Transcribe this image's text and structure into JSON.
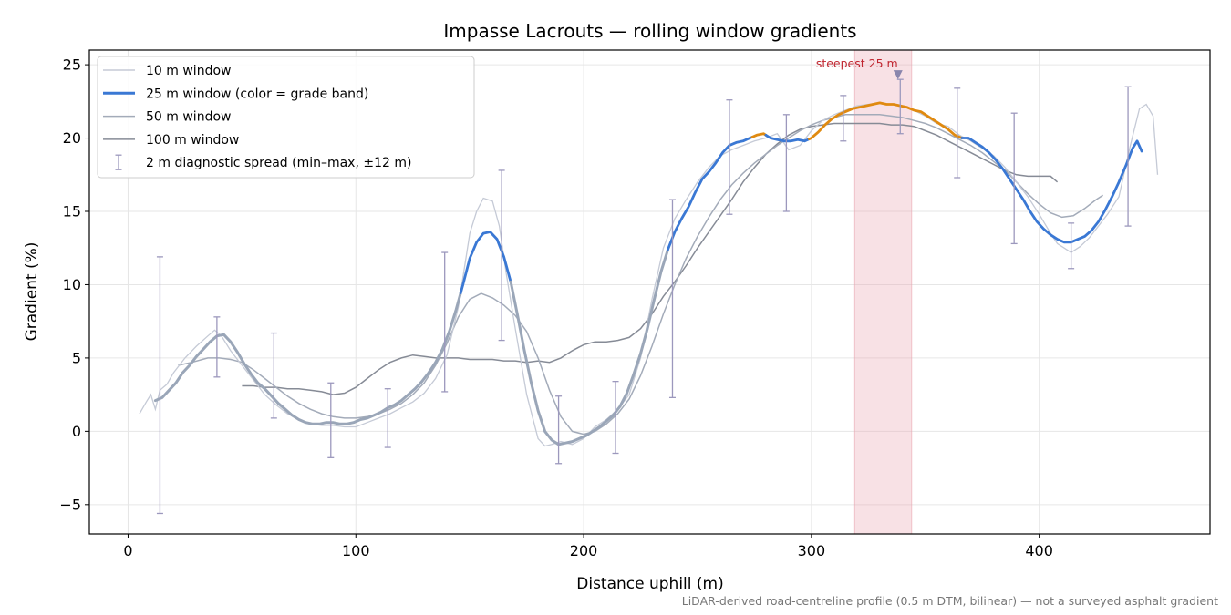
{
  "chart_data": {
    "type": "line",
    "title": "Impasse Lacrouts — rolling window gradients",
    "xlabel": "Distance uphill (m)",
    "ylabel": "Gradient (%)",
    "xlim": [
      -17,
      475
    ],
    "ylim": [
      -7,
      26
    ],
    "xticks": [
      0,
      100,
      200,
      300,
      400
    ],
    "yticks": [
      -5,
      0,
      5,
      10,
      15,
      20,
      25
    ],
    "grid": true,
    "legend_position": "upper-left",
    "footnote": "LiDAR-derived road-centreline profile (0.5 m DTM, bilinear) — not a surveyed asphalt gradient",
    "colors": {
      "w10": "#c5cad6",
      "w25_base": "#9aa6b8",
      "w25_blue": "#3a78d4",
      "w25_orange": "#e08a10",
      "w50": "#a3abb9",
      "w100": "#868b96",
      "errorbar": "#9c98bd",
      "highlight_fill": "#e8a3ad",
      "annotation": "#c0252f"
    },
    "highlight_band": {
      "x0": 319,
      "x1": 344
    },
    "annotation": {
      "label": "steepest 25 m",
      "x": 338,
      "y": 24.5
    },
    "legend": [
      {
        "key": "w10",
        "label": "10 m window"
      },
      {
        "key": "w25",
        "label": "25 m window (color = grade band)"
      },
      {
        "key": "w50",
        "label": "50 m window"
      },
      {
        "key": "w100",
        "label": "100 m window"
      },
      {
        "key": "err",
        "label": "2 m diagnostic spread (min–max, ±12 m)"
      }
    ],
    "series": [
      {
        "key": "w10",
        "name": "10 m window",
        "x": [
          5,
          8,
          10,
          12,
          14,
          17,
          20,
          25,
          30,
          35,
          38,
          41,
          45,
          50,
          55,
          60,
          65,
          70,
          75,
          80,
          85,
          90,
          95,
          100,
          105,
          110,
          115,
          120,
          125,
          130,
          135,
          140,
          145,
          150,
          153,
          156,
          160,
          163,
          166,
          170,
          175,
          180,
          183,
          186,
          190,
          195,
          200,
          205,
          210,
          215,
          220,
          225,
          230,
          235,
          240,
          245,
          250,
          255,
          260,
          265,
          270,
          275,
          280,
          285,
          290,
          295,
          300,
          305,
          310,
          315,
          320,
          325,
          330,
          335,
          340,
          345,
          350,
          355,
          360,
          365,
          370,
          375,
          380,
          385,
          390,
          395,
          400,
          405,
          408,
          411,
          414,
          418,
          422,
          426,
          430,
          435,
          440,
          444,
          447,
          450,
          452
        ],
        "y": [
          1.2,
          2.0,
          2.5,
          1.5,
          2.8,
          3.2,
          4.0,
          5.0,
          5.8,
          6.5,
          6.9,
          6.5,
          5.5,
          4.5,
          3.5,
          2.5,
          1.8,
          1.2,
          0.8,
          0.5,
          0.4,
          0.4,
          0.3,
          0.3,
          0.6,
          0.9,
          1.2,
          1.6,
          2.0,
          2.6,
          3.6,
          5.2,
          8.5,
          13.5,
          15.0,
          15.9,
          15.7,
          14.0,
          10.8,
          7.0,
          2.5,
          -0.5,
          -1.0,
          -0.9,
          -0.7,
          -0.9,
          -0.5,
          0.3,
          0.8,
          1.5,
          2.5,
          5.0,
          9.0,
          12.5,
          14.5,
          15.8,
          17.0,
          18.0,
          18.8,
          19.2,
          19.5,
          19.8,
          20.0,
          20.3,
          19.2,
          19.5,
          20.5,
          21.2,
          21.6,
          21.9,
          22.2,
          22.3,
          22.4,
          22.3,
          22.2,
          21.9,
          21.5,
          21.0,
          20.8,
          20.2,
          19.8,
          19.3,
          18.8,
          18.0,
          17.0,
          16.0,
          14.8,
          13.5,
          12.8,
          12.5,
          12.2,
          12.6,
          13.2,
          14.0,
          14.8,
          16.0,
          19.5,
          22.0,
          22.3,
          21.5,
          17.5
        ]
      },
      {
        "key": "w25",
        "name": "25 m window (color = grade band)",
        "x": [
          12,
          15,
          18,
          21,
          24,
          27,
          30,
          33,
          36,
          39,
          42,
          45,
          48,
          51,
          54,
          57,
          60,
          63,
          66,
          69,
          72,
          75,
          78,
          81,
          84,
          87,
          90,
          93,
          96,
          99,
          102,
          105,
          108,
          111,
          114,
          117,
          120,
          123,
          126,
          129,
          132,
          135,
          138,
          141,
          144,
          147,
          150,
          153,
          156,
          159,
          162,
          165,
          168,
          171,
          174,
          177,
          180,
          183,
          186,
          189,
          192,
          195,
          198,
          201,
          204,
          207,
          210,
          213,
          216,
          219,
          222,
          225,
          228,
          231,
          234,
          237,
          240,
          243,
          246,
          249,
          252,
          255,
          258,
          261,
          264,
          267,
          270,
          273,
          276,
          279,
          282,
          285,
          288,
          291,
          294,
          297,
          300,
          303,
          306,
          309,
          312,
          315,
          318,
          321,
          324,
          327,
          330,
          333,
          336,
          339,
          342,
          345,
          348,
          351,
          354,
          357,
          360,
          363,
          366,
          369,
          372,
          375,
          378,
          381,
          384,
          387,
          390,
          393,
          396,
          399,
          402,
          405,
          408,
          411,
          414,
          417,
          420,
          423,
          426,
          429,
          432,
          435,
          438,
          441,
          443,
          445
        ],
        "y": [
          2.1,
          2.3,
          2.8,
          3.3,
          4.0,
          4.5,
          5.1,
          5.6,
          6.1,
          6.5,
          6.6,
          6.1,
          5.4,
          4.6,
          3.9,
          3.3,
          2.9,
          2.4,
          1.9,
          1.5,
          1.1,
          0.8,
          0.6,
          0.5,
          0.5,
          0.6,
          0.6,
          0.5,
          0.5,
          0.6,
          0.8,
          0.9,
          1.1,
          1.3,
          1.6,
          1.8,
          2.1,
          2.5,
          2.9,
          3.4,
          4.0,
          4.7,
          5.6,
          6.8,
          8.3,
          10.0,
          11.8,
          12.9,
          13.5,
          13.6,
          13.1,
          11.9,
          10.2,
          7.9,
          5.5,
          3.3,
          1.4,
          0.0,
          -0.6,
          -0.9,
          -0.8,
          -0.7,
          -0.5,
          -0.3,
          0.0,
          0.3,
          0.7,
          1.1,
          1.7,
          2.6,
          3.9,
          5.3,
          7.0,
          9.0,
          10.9,
          12.4,
          13.6,
          14.5,
          15.3,
          16.3,
          17.2,
          17.7,
          18.3,
          19.0,
          19.5,
          19.7,
          19.8,
          20.0,
          20.2,
          20.3,
          20.0,
          19.9,
          19.8,
          19.8,
          19.9,
          19.8,
          20.0,
          20.4,
          20.9,
          21.3,
          21.6,
          21.8,
          22.0,
          22.1,
          22.2,
          22.3,
          22.4,
          22.3,
          22.3,
          22.2,
          22.1,
          21.9,
          21.8,
          21.5,
          21.2,
          20.9,
          20.6,
          20.2,
          20.0,
          20.0,
          19.7,
          19.4,
          19.0,
          18.5,
          17.9,
          17.2,
          16.5,
          15.8,
          15.0,
          14.3,
          13.8,
          13.4,
          13.1,
          12.9,
          12.9,
          13.1,
          13.3,
          13.7,
          14.3,
          15.1,
          16.0,
          17.0,
          18.1,
          19.3,
          19.8,
          19.1
        ],
        "color_segments": [
          {
            "x0": 12,
            "x1": 146,
            "band": "base"
          },
          {
            "x0": 146,
            "x1": 168,
            "band": "blue"
          },
          {
            "x0": 168,
            "x1": 237,
            "band": "base"
          },
          {
            "x0": 237,
            "x1": 274,
            "band": "blue"
          },
          {
            "x0": 274,
            "x1": 280,
            "band": "orange"
          },
          {
            "x0": 280,
            "x1": 299,
            "band": "blue"
          },
          {
            "x0": 299,
            "x1": 366,
            "band": "orange"
          },
          {
            "x0": 366,
            "x1": 445,
            "band": "blue"
          }
        ]
      },
      {
        "key": "w50",
        "name": "50 m window",
        "x": [
          22,
          28,
          35,
          40,
          45,
          50,
          55,
          60,
          65,
          70,
          75,
          80,
          85,
          90,
          95,
          100,
          105,
          110,
          115,
          120,
          125,
          130,
          135,
          140,
          145,
          150,
          155,
          160,
          165,
          170,
          175,
          180,
          185,
          190,
          195,
          200,
          205,
          210,
          215,
          220,
          225,
          230,
          235,
          240,
          245,
          250,
          255,
          260,
          265,
          270,
          275,
          280,
          285,
          290,
          295,
          300,
          305,
          310,
          315,
          320,
          325,
          330,
          335,
          340,
          345,
          350,
          355,
          360,
          365,
          370,
          375,
          380,
          385,
          390,
          395,
          400,
          405,
          410,
          415,
          420,
          425,
          428
        ],
        "y": [
          4.5,
          4.7,
          5.0,
          5.0,
          4.9,
          4.7,
          4.2,
          3.6,
          3.0,
          2.4,
          1.9,
          1.5,
          1.2,
          1.0,
          0.9,
          0.9,
          1.0,
          1.2,
          1.5,
          1.9,
          2.5,
          3.3,
          4.5,
          6.0,
          7.8,
          9.0,
          9.4,
          9.1,
          8.6,
          7.9,
          6.8,
          5.0,
          2.8,
          1.0,
          0.0,
          -0.2,
          0.0,
          0.5,
          1.2,
          2.2,
          3.8,
          5.8,
          8.0,
          10.0,
          11.8,
          13.3,
          14.6,
          15.8,
          16.8,
          17.6,
          18.3,
          18.9,
          19.5,
          20.0,
          20.5,
          20.9,
          21.2,
          21.4,
          21.6,
          21.6,
          21.6,
          21.6,
          21.5,
          21.4,
          21.2,
          21.0,
          20.7,
          20.3,
          19.9,
          19.5,
          19.0,
          18.4,
          17.8,
          17.0,
          16.2,
          15.5,
          14.9,
          14.6,
          14.7,
          15.2,
          15.8,
          16.1
        ]
      },
      {
        "key": "w100",
        "name": "100 m window",
        "x": [
          50,
          55,
          60,
          65,
          70,
          75,
          80,
          85,
          90,
          95,
          100,
          105,
          110,
          115,
          120,
          125,
          130,
          135,
          140,
          145,
          150,
          155,
          160,
          165,
          170,
          175,
          180,
          185,
          190,
          195,
          200,
          205,
          210,
          215,
          220,
          225,
          230,
          235,
          240,
          245,
          250,
          255,
          260,
          265,
          270,
          275,
          280,
          285,
          290,
          295,
          300,
          305,
          310,
          315,
          320,
          325,
          330,
          335,
          340,
          345,
          350,
          355,
          360,
          365,
          370,
          375,
          380,
          385,
          390,
          395,
          400,
          405,
          408
        ],
        "y": [
          3.1,
          3.1,
          3.0,
          3.0,
          2.9,
          2.9,
          2.8,
          2.7,
          2.5,
          2.6,
          3.0,
          3.6,
          4.2,
          4.7,
          5.0,
          5.2,
          5.1,
          5.0,
          5.0,
          5.0,
          4.9,
          4.9,
          4.9,
          4.8,
          4.8,
          4.7,
          4.8,
          4.7,
          5.0,
          5.5,
          5.9,
          6.1,
          6.1,
          6.2,
          6.4,
          7.0,
          8.0,
          9.2,
          10.2,
          11.3,
          12.5,
          13.6,
          14.7,
          15.8,
          17.0,
          18.0,
          18.9,
          19.6,
          20.2,
          20.6,
          20.8,
          20.9,
          21.0,
          21.0,
          21.0,
          21.0,
          21.0,
          20.9,
          20.9,
          20.8,
          20.5,
          20.2,
          19.8,
          19.4,
          19.0,
          18.6,
          18.2,
          17.8,
          17.5,
          17.4,
          17.4,
          17.4,
          17.0
        ]
      }
    ],
    "error_bars": [
      {
        "x": 14,
        "low": -5.6,
        "high": 11.9
      },
      {
        "x": 39,
        "low": 3.7,
        "high": 7.8
      },
      {
        "x": 64,
        "low": 0.9,
        "high": 6.7
      },
      {
        "x": 89,
        "low": -1.8,
        "high": 3.3
      },
      {
        "x": 114,
        "low": -1.1,
        "high": 2.9
      },
      {
        "x": 139,
        "low": 2.7,
        "high": 12.2
      },
      {
        "x": 164,
        "low": 6.2,
        "high": 17.8
      },
      {
        "x": 189,
        "low": -2.2,
        "high": 2.4
      },
      {
        "x": 214,
        "low": -1.5,
        "high": 3.4
      },
      {
        "x": 239,
        "low": 2.3,
        "high": 15.8
      },
      {
        "x": 264,
        "low": 14.8,
        "high": 22.6
      },
      {
        "x": 289,
        "low": 15.0,
        "high": 21.6
      },
      {
        "x": 314,
        "low": 19.8,
        "high": 22.9
      },
      {
        "x": 339,
        "low": 20.3,
        "high": 24.0
      },
      {
        "x": 364,
        "low": 17.3,
        "high": 23.4
      },
      {
        "x": 389,
        "low": 12.8,
        "high": 21.7
      },
      {
        "x": 414,
        "low": 11.1,
        "high": 14.2
      },
      {
        "x": 439,
        "low": 14.0,
        "high": 23.5
      }
    ]
  }
}
